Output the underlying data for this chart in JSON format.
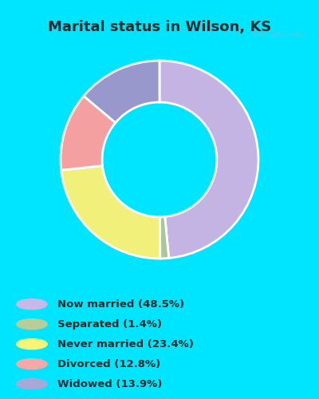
{
  "title": "Marital status in Wilson, KS",
  "categories": [
    "Now married",
    "Separated",
    "Never married",
    "Divorced",
    "Widowed"
  ],
  "values": [
    48.5,
    1.4,
    23.4,
    12.8,
    13.9
  ],
  "colors": [
    "#c4b4e4",
    "#a8c89a",
    "#f0f07a",
    "#f4a0a0",
    "#9898cc"
  ],
  "legend_labels": [
    "Now married (48.5%)",
    "Separated (1.4%)",
    "Never married (23.4%)",
    "Divorced (12.8%)",
    "Widowed (13.9%)"
  ],
  "legend_colors": [
    "#c8b8e8",
    "#b8cc98",
    "#f5f578",
    "#f4a8a8",
    "#a8a8d8"
  ],
  "background_outer": "#00e5ff",
  "chart_bg_color": "#d8ecd8",
  "title_color": "#2a2a2a",
  "title_fontsize": 13,
  "start_angle": 90,
  "watermark": "City-Data.com"
}
